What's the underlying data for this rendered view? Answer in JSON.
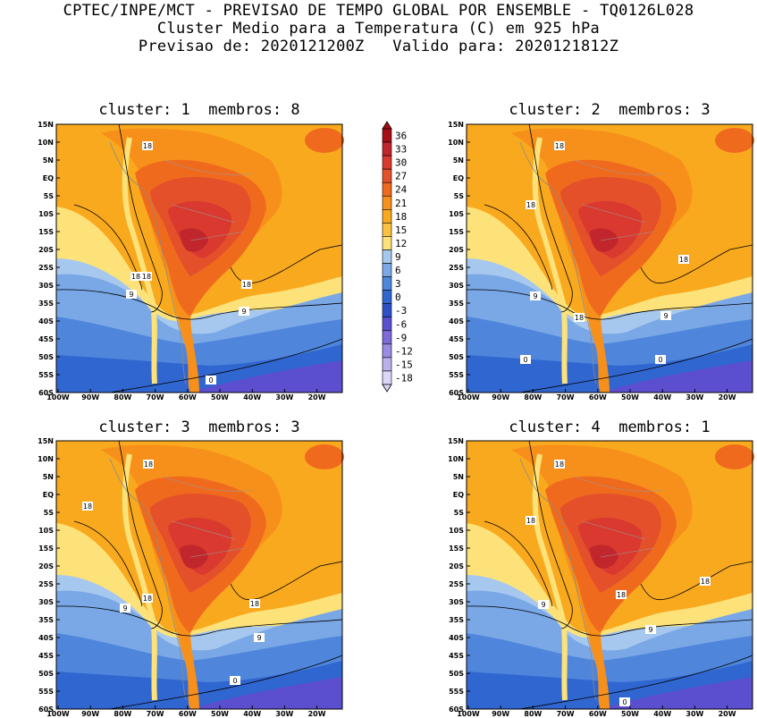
{
  "header": {
    "line1": "CPTEC/INPE/MCT - PREVISAO DE TEMPO GLOBAL POR ENSEMBLE - TQ0126L028",
    "line2": "Cluster Medio para a Temperatura (C) em 925 hPa",
    "line3": "Previsao de: 2020121200Z   Valido para: 2020121812Z"
  },
  "panels": [
    {
      "title": "cluster: 1  membros: 8",
      "contour_labels": [
        "18",
        "18",
        "18",
        "18",
        "9",
        "9",
        "0"
      ]
    },
    {
      "title": "cluster: 2  membros: 3",
      "contour_labels": [
        "18",
        "18",
        "18",
        "18",
        "9",
        "9",
        "0",
        "0"
      ]
    },
    {
      "title": "cluster: 3  membros: 3",
      "contour_labels": [
        "18",
        "18",
        "18",
        "18",
        "9",
        "9",
        "0"
      ]
    },
    {
      "title": "cluster: 4  membros: 1",
      "contour_labels": [
        "18",
        "18",
        "18",
        "18",
        "9",
        "9",
        "0"
      ]
    }
  ],
  "axes": {
    "lat_labels": [
      "15N",
      "10N",
      "5N",
      "EQ",
      "5S",
      "10S",
      "15S",
      "20S",
      "25S",
      "30S",
      "35S",
      "40S",
      "45S",
      "50S",
      "55S",
      "60S"
    ],
    "lon_labels": [
      "100W",
      "90W",
      "80W",
      "70W",
      "60W",
      "50W",
      "40W",
      "30W",
      "20W"
    ]
  },
  "colorbar": {
    "labels": [
      "36",
      "33",
      "30",
      "27",
      "24",
      "21",
      "18",
      "15",
      "12",
      "9",
      "6",
      "3",
      "0",
      "-3",
      "-6",
      "-9",
      "-12",
      "-15",
      "-18"
    ],
    "colors": [
      "#a50f15",
      "#c0262b",
      "#d9392f",
      "#e4502a",
      "#f06a1e",
      "#f7901a",
      "#f9a91e",
      "#fbc240",
      "#fde27a",
      "#a6c8ee",
      "#7aa8e6",
      "#4f86dc",
      "#3066d0",
      "#2d50c8",
      "#5b4fcf",
      "#7d6ad8",
      "#9b8be2",
      "#bcb0ec",
      "#ddd6f6"
    ],
    "units": "C"
  }
}
